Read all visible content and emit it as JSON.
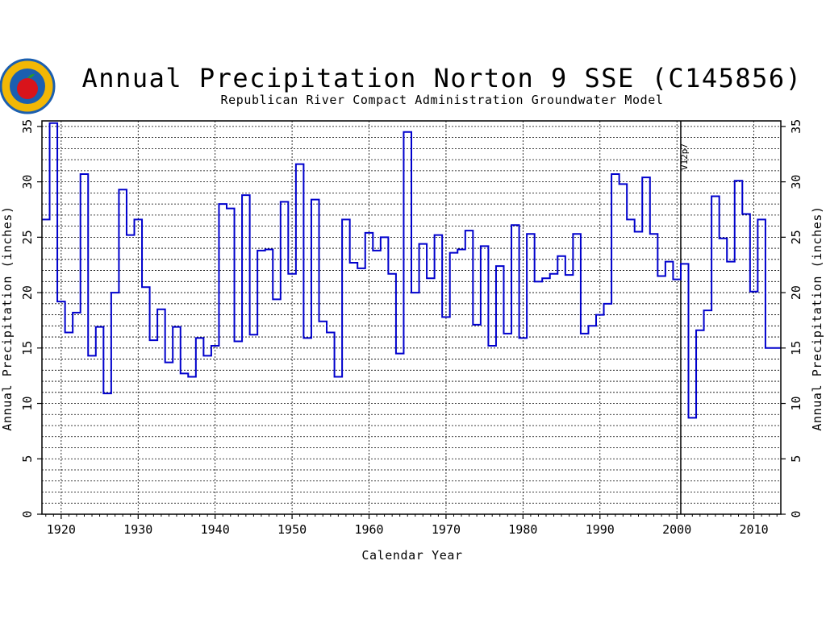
{
  "chart_data": {
    "type": "line",
    "step": true,
    "title": "Annual Precipitation Norton 9 SSE (C145856)",
    "subtitle": "Republican River Compact Administration Groundwater Model",
    "xlabel": "Calendar Year",
    "ylabel": "Annual Precipitation (inches)",
    "ylabel_right": "Annual Precipitation (inches)",
    "xlim": [
      1917.5,
      2013.5
    ],
    "ylim": [
      0,
      35.5
    ],
    "x_ticks": [
      1920,
      1930,
      1940,
      1950,
      1960,
      1970,
      1980,
      1990,
      2000,
      2010
    ],
    "x_tick_labels": [
      "1920",
      "1930",
      "1940",
      "1950",
      "1960",
      "1970",
      "1980",
      "1990",
      "2000",
      "2010"
    ],
    "y_ticks": [
      0,
      5,
      10,
      15,
      20,
      25,
      30,
      35
    ],
    "y_tick_labels": [
      "0",
      "5",
      "10",
      "15",
      "20",
      "25",
      "30",
      "35"
    ],
    "grid": true,
    "reference_line": {
      "x": 2000.5,
      "label": "V12p7"
    },
    "series": [
      {
        "color": "#0000cc",
        "x": [
          1918,
          1919,
          1920,
          1921,
          1922,
          1923,
          1924,
          1925,
          1926,
          1927,
          1928,
          1929,
          1930,
          1931,
          1932,
          1933,
          1934,
          1935,
          1936,
          1937,
          1938,
          1939,
          1940,
          1941,
          1942,
          1943,
          1944,
          1945,
          1946,
          1947,
          1948,
          1949,
          1950,
          1951,
          1952,
          1953,
          1954,
          1955,
          1956,
          1957,
          1958,
          1959,
          1960,
          1961,
          1962,
          1963,
          1964,
          1965,
          1966,
          1967,
          1968,
          1969,
          1970,
          1971,
          1972,
          1973,
          1974,
          1975,
          1976,
          1977,
          1978,
          1979,
          1980,
          1981,
          1982,
          1983,
          1984,
          1985,
          1986,
          1987,
          1988,
          1989,
          1990,
          1991,
          1992,
          1993,
          1994,
          1995,
          1996,
          1997,
          1998,
          1999,
          2000,
          2001,
          2002,
          2003,
          2004,
          2005,
          2006,
          2007,
          2008,
          2009,
          2010,
          2011,
          2012,
          2013
        ],
        "values": [
          26.6,
          35.3,
          19.2,
          16.4,
          18.2,
          30.7,
          14.3,
          16.9,
          10.9,
          20.0,
          29.3,
          25.2,
          26.6,
          20.5,
          15.7,
          18.5,
          13.7,
          16.9,
          12.7,
          12.4,
          15.9,
          14.3,
          15.2,
          28.0,
          27.6,
          15.6,
          28.8,
          16.2,
          23.8,
          23.9,
          19.4,
          28.2,
          21.7,
          31.6,
          15.9,
          28.4,
          17.4,
          16.4,
          12.4,
          26.6,
          22.7,
          22.2,
          25.4,
          23.8,
          25.0,
          21.7,
          14.5,
          34.5,
          20.0,
          24.4,
          21.3,
          25.2,
          17.8,
          23.6,
          23.9,
          25.6,
          17.1,
          24.2,
          15.2,
          22.4,
          16.3,
          26.1,
          15.9,
          25.3,
          21.0,
          21.3,
          21.7,
          23.3,
          21.6,
          25.3,
          16.3,
          17.0,
          18.0,
          19.0,
          30.7,
          29.8,
          26.6,
          25.5,
          30.4,
          25.3,
          21.5,
          22.8,
          21.2,
          22.6,
          8.7,
          16.6,
          18.4,
          28.7,
          24.9,
          22.8,
          30.1,
          27.1,
          20.1,
          26.6,
          15.0,
          15.0
        ]
      }
    ]
  },
  "logo": {
    "name": "rrca-logo",
    "fill_color": "#1b5fb0",
    "ring_color": "#f2b705"
  },
  "colors": {
    "series": "#0000cc",
    "grid": "#000000",
    "axis": "#000000",
    "background": "#ffffff"
  }
}
